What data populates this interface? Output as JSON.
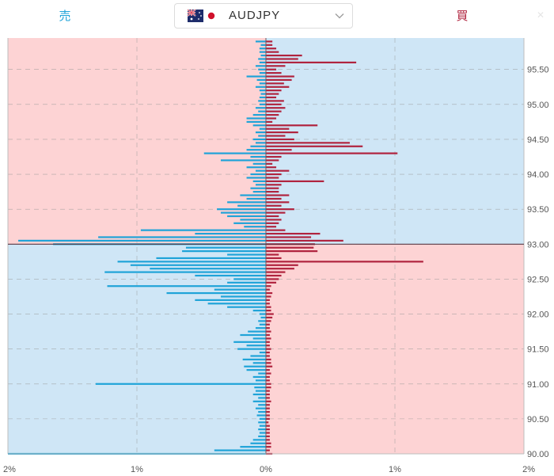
{
  "header": {
    "sell_label": "売",
    "buy_label": "買",
    "pair": "AUDJPY",
    "flag_icons": [
      "australia-flag-icon",
      "japan-flag-icon"
    ],
    "dropdown_icon": "chevron-down-icon"
  },
  "colors": {
    "sell_bar": "#1fa3d8",
    "buy_bar": "#b0233e",
    "pink_zone": "#fdd3d4",
    "blue_zone": "#cfe6f6",
    "current_price_line": "#5a3a46"
  },
  "chart_data": {
    "type": "bar",
    "orientation": "horizontal",
    "title": "",
    "xlabel": "",
    "ylabel": "",
    "current_price": 93.0,
    "x_ticks": [
      "2%",
      "1%",
      "0%",
      "1%",
      "2%"
    ],
    "xlim": [
      -2,
      2
    ],
    "y_ticks": [
      "90.00",
      "90.50",
      "91.00",
      "91.50",
      "92.00",
      "92.50",
      "93.00",
      "93.50",
      "94.00",
      "94.50",
      "95.00",
      "95.50"
    ],
    "ylim": [
      90.0,
      95.95
    ],
    "grid": true,
    "series": [
      {
        "side": "sell",
        "bins": [
          [
            90.0,
            2.0
          ],
          [
            90.05,
            0.4
          ],
          [
            90.1,
            0.2
          ],
          [
            90.15,
            0.12
          ],
          [
            90.2,
            0.1
          ],
          [
            90.25,
            0.06
          ],
          [
            90.3,
            0.05
          ],
          [
            90.35,
            0.06
          ],
          [
            90.4,
            0.05
          ],
          [
            90.45,
            0.06
          ],
          [
            90.5,
            0.05
          ],
          [
            90.55,
            0.07
          ],
          [
            90.6,
            0.06
          ],
          [
            90.65,
            0.08
          ],
          [
            90.7,
            0.06
          ],
          [
            90.75,
            0.1
          ],
          [
            90.8,
            0.06
          ],
          [
            90.85,
            0.1
          ],
          [
            90.9,
            0.08
          ],
          [
            90.95,
            0.09
          ],
          [
            91.0,
            1.32
          ],
          [
            91.05,
            0.08
          ],
          [
            91.1,
            0.1
          ],
          [
            91.15,
            0.06
          ],
          [
            91.2,
            0.15
          ],
          [
            91.25,
            0.17
          ],
          [
            91.3,
            0.1
          ],
          [
            91.35,
            0.18
          ],
          [
            91.4,
            0.12
          ],
          [
            91.45,
            0.05
          ],
          [
            91.5,
            0.22
          ],
          [
            91.55,
            0.15
          ],
          [
            91.6,
            0.25
          ],
          [
            91.65,
            0.1
          ],
          [
            91.7,
            0.2
          ],
          [
            91.75,
            0.14
          ],
          [
            91.8,
            0.08
          ],
          [
            91.85,
            0.05
          ],
          [
            91.9,
            0.06
          ],
          [
            91.95,
            0.04
          ],
          [
            92.0,
            0.05
          ],
          [
            92.05,
            0.1
          ],
          [
            92.1,
            0.3
          ],
          [
            92.15,
            0.45
          ],
          [
            92.2,
            0.55
          ],
          [
            92.25,
            0.35
          ],
          [
            92.3,
            0.77
          ],
          [
            92.35,
            0.4
          ],
          [
            92.4,
            1.23
          ],
          [
            92.45,
            0.3
          ],
          [
            92.5,
            0.25
          ],
          [
            92.55,
            0.55
          ],
          [
            92.6,
            1.25
          ],
          [
            92.65,
            0.9
          ],
          [
            92.7,
            1.05
          ],
          [
            92.75,
            1.15
          ],
          [
            92.8,
            0.85
          ],
          [
            92.85,
            0.3
          ],
          [
            92.9,
            0.65
          ],
          [
            92.95,
            0.62
          ],
          [
            93.0,
            1.65
          ],
          [
            93.05,
            1.92
          ],
          [
            93.1,
            1.3
          ],
          [
            93.15,
            0.55
          ],
          [
            93.2,
            0.97
          ],
          [
            93.25,
            0.17
          ],
          [
            93.3,
            0.25
          ],
          [
            93.35,
            0.2
          ],
          [
            93.4,
            0.3
          ],
          [
            93.45,
            0.35
          ],
          [
            93.5,
            0.38
          ],
          [
            93.55,
            0.22
          ],
          [
            93.6,
            0.3
          ],
          [
            93.65,
            0.15
          ],
          [
            93.7,
            0.2
          ],
          [
            93.75,
            0.1
          ],
          [
            93.8,
            0.12
          ],
          [
            93.85,
            0.08
          ],
          [
            93.9,
            0.1
          ],
          [
            93.95,
            0.15
          ],
          [
            94.0,
            0.12
          ],
          [
            94.05,
            0.08
          ],
          [
            94.1,
            0.15
          ],
          [
            94.15,
            0.1
          ],
          [
            94.2,
            0.35
          ],
          [
            94.25,
            0.12
          ],
          [
            94.3,
            0.48
          ],
          [
            94.35,
            0.15
          ],
          [
            94.4,
            0.12
          ],
          [
            94.45,
            0.08
          ],
          [
            94.5,
            0.1
          ],
          [
            94.55,
            0.06
          ],
          [
            94.6,
            0.08
          ],
          [
            94.65,
            0.05
          ],
          [
            94.7,
            0.1
          ],
          [
            94.75,
            0.15
          ],
          [
            94.8,
            0.15
          ],
          [
            94.85,
            0.1
          ],
          [
            94.9,
            0.06
          ],
          [
            94.95,
            0.08
          ],
          [
            95.0,
            0.05
          ],
          [
            95.05,
            0.06
          ],
          [
            95.1,
            0.05
          ],
          [
            95.15,
            0.04
          ],
          [
            95.2,
            0.05
          ],
          [
            95.25,
            0.08
          ],
          [
            95.3,
            0.05
          ],
          [
            95.35,
            0.07
          ],
          [
            95.4,
            0.15
          ],
          [
            95.45,
            0.05
          ],
          [
            95.5,
            0.06
          ],
          [
            95.55,
            0.08
          ],
          [
            95.6,
            0.05
          ],
          [
            95.65,
            0.06
          ],
          [
            95.7,
            0.04
          ],
          [
            95.75,
            0.05
          ],
          [
            95.8,
            0.05
          ],
          [
            95.85,
            0.04
          ],
          [
            95.9,
            0.08
          ]
        ]
      },
      {
        "side": "buy",
        "bins": [
          [
            90.0,
            0.05
          ],
          [
            90.05,
            0.03
          ],
          [
            90.1,
            0.04
          ],
          [
            90.15,
            0.04
          ],
          [
            90.2,
            0.03
          ],
          [
            90.25,
            0.03
          ],
          [
            90.3,
            0.03
          ],
          [
            90.35,
            0.03
          ],
          [
            90.4,
            0.03
          ],
          [
            90.45,
            0.02
          ],
          [
            90.5,
            0.03
          ],
          [
            90.55,
            0.03
          ],
          [
            90.6,
            0.03
          ],
          [
            90.65,
            0.03
          ],
          [
            90.7,
            0.03
          ],
          [
            90.75,
            0.04
          ],
          [
            90.8,
            0.03
          ],
          [
            90.85,
            0.03
          ],
          [
            90.9,
            0.03
          ],
          [
            90.95,
            0.04
          ],
          [
            91.0,
            0.04
          ],
          [
            91.05,
            0.03
          ],
          [
            91.1,
            0.03
          ],
          [
            91.15,
            0.04
          ],
          [
            91.2,
            0.03
          ],
          [
            91.25,
            0.05
          ],
          [
            91.3,
            0.04
          ],
          [
            91.35,
            0.04
          ],
          [
            91.4,
            0.03
          ],
          [
            91.45,
            0.03
          ],
          [
            91.5,
            0.04
          ],
          [
            91.55,
            0.03
          ],
          [
            91.6,
            0.03
          ],
          [
            91.65,
            0.04
          ],
          [
            91.7,
            0.03
          ],
          [
            91.75,
            0.04
          ],
          [
            91.8,
            0.03
          ],
          [
            91.85,
            0.03
          ],
          [
            91.9,
            0.04
          ],
          [
            91.95,
            0.05
          ],
          [
            92.0,
            0.06
          ],
          [
            92.05,
            0.04
          ],
          [
            92.1,
            0.04
          ],
          [
            92.15,
            0.03
          ],
          [
            92.2,
            0.03
          ],
          [
            92.25,
            0.04
          ],
          [
            92.3,
            0.05
          ],
          [
            92.35,
            0.03
          ],
          [
            92.4,
            0.04
          ],
          [
            92.45,
            0.08
          ],
          [
            92.5,
            0.1
          ],
          [
            92.55,
            0.12
          ],
          [
            92.6,
            0.15
          ],
          [
            92.65,
            0.22
          ],
          [
            92.7,
            0.25
          ],
          [
            92.75,
            1.22
          ],
          [
            92.8,
            0.12
          ],
          [
            92.85,
            0.1
          ],
          [
            92.9,
            0.4
          ],
          [
            92.95,
            0.37
          ],
          [
            93.0,
            0.38
          ],
          [
            93.05,
            0.6
          ],
          [
            93.1,
            0.35
          ],
          [
            93.15,
            0.42
          ],
          [
            93.2,
            0.15
          ],
          [
            93.25,
            0.08
          ],
          [
            93.3,
            0.1
          ],
          [
            93.35,
            0.12
          ],
          [
            93.4,
            0.1
          ],
          [
            93.45,
            0.15
          ],
          [
            93.5,
            0.22
          ],
          [
            93.55,
            0.12
          ],
          [
            93.6,
            0.18
          ],
          [
            93.65,
            0.12
          ],
          [
            93.7,
            0.18
          ],
          [
            93.75,
            0.1
          ],
          [
            93.8,
            0.1
          ],
          [
            93.85,
            0.12
          ],
          [
            93.9,
            0.45
          ],
          [
            93.95,
            0.1
          ],
          [
            94.0,
            0.12
          ],
          [
            94.05,
            0.18
          ],
          [
            94.1,
            0.08
          ],
          [
            94.15,
            0.05
          ],
          [
            94.2,
            0.1
          ],
          [
            94.25,
            0.12
          ],
          [
            94.3,
            1.02
          ],
          [
            94.35,
            0.2
          ],
          [
            94.4,
            0.75
          ],
          [
            94.45,
            0.65
          ],
          [
            94.5,
            0.22
          ],
          [
            94.55,
            0.15
          ],
          [
            94.6,
            0.25
          ],
          [
            94.65,
            0.18
          ],
          [
            94.7,
            0.4
          ],
          [
            94.75,
            0.05
          ],
          [
            94.8,
            0.08
          ],
          [
            94.85,
            0.1
          ],
          [
            94.9,
            0.12
          ],
          [
            94.95,
            0.15
          ],
          [
            95.0,
            0.12
          ],
          [
            95.05,
            0.14
          ],
          [
            95.1,
            0.08
          ],
          [
            95.15,
            0.1
          ],
          [
            95.2,
            0.12
          ],
          [
            95.25,
            0.18
          ],
          [
            95.3,
            0.14
          ],
          [
            95.35,
            0.2
          ],
          [
            95.4,
            0.22
          ],
          [
            95.45,
            0.12
          ],
          [
            95.5,
            0.08
          ],
          [
            95.55,
            0.15
          ],
          [
            95.6,
            0.7
          ],
          [
            95.65,
            0.25
          ],
          [
            95.7,
            0.28
          ],
          [
            95.75,
            0.1
          ],
          [
            95.8,
            0.08
          ],
          [
            95.85,
            0.05
          ],
          [
            95.9,
            0.05
          ]
        ]
      }
    ]
  }
}
